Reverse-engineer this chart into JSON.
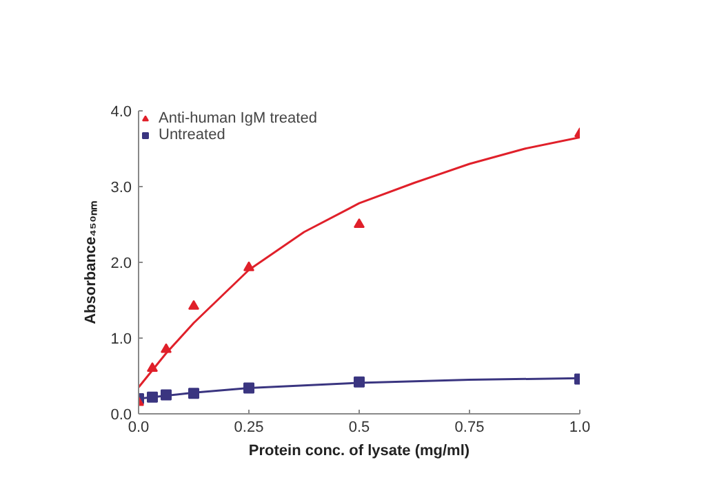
{
  "chart_data": {
    "type": "scatter",
    "xlabel": "Protein conc. of lysate (mg/ml)",
    "ylabel": "Absorbance₄₅₀ₙₘ",
    "xlim": [
      0,
      1.0
    ],
    "ylim": [
      0,
      4.0
    ],
    "xticks": [
      {
        "value": 0,
        "label": "0.0"
      },
      0.25,
      0.5,
      0.75,
      {
        "value": 1,
        "label": "1.0"
      }
    ],
    "yticks": [
      {
        "value": 0,
        "label": "0.0"
      },
      {
        "value": 1,
        "label": "1.0"
      },
      {
        "value": 2,
        "label": "2.0"
      },
      {
        "value": 3,
        "label": "3.0"
      },
      {
        "value": 4,
        "label": "4.0"
      }
    ],
    "grid": false,
    "legend": "top left",
    "series": [
      {
        "name": "Anti-human IgM treated",
        "color": "#e0202a",
        "marker": "triangle",
        "x": [
          0,
          0.03125,
          0.0625,
          0.125,
          0.25,
          0.5,
          1.0
        ],
        "values": [
          0.15,
          0.6,
          0.85,
          1.42,
          1.93,
          2.5,
          3.7
        ]
      },
      {
        "name": "Untreated",
        "color": "#3a3580",
        "marker": "square",
        "x": [
          0,
          0.03125,
          0.0625,
          0.125,
          0.25,
          0.5,
          1.0
        ],
        "values": [
          0.2,
          0.22,
          0.25,
          0.27,
          0.34,
          0.42,
          0.46
        ]
      },
      {
        "type": "line",
        "color": "#e0202a",
        "marker": "none",
        "x": [
          0,
          0.0625,
          0.125,
          0.25,
          0.375,
          0.5,
          0.625,
          0.75,
          0.875,
          1.0
        ],
        "values": [
          0.35,
          0.8,
          1.2,
          1.9,
          2.4,
          2.78,
          3.05,
          3.3,
          3.5,
          3.65
        ]
      },
      {
        "type": "line",
        "color": "#3a3580",
        "marker": "none",
        "x": [
          0,
          0.125,
          0.25,
          0.5,
          0.75,
          1.0
        ],
        "values": [
          0.2,
          0.28,
          0.34,
          0.41,
          0.45,
          0.47
        ]
      }
    ]
  }
}
